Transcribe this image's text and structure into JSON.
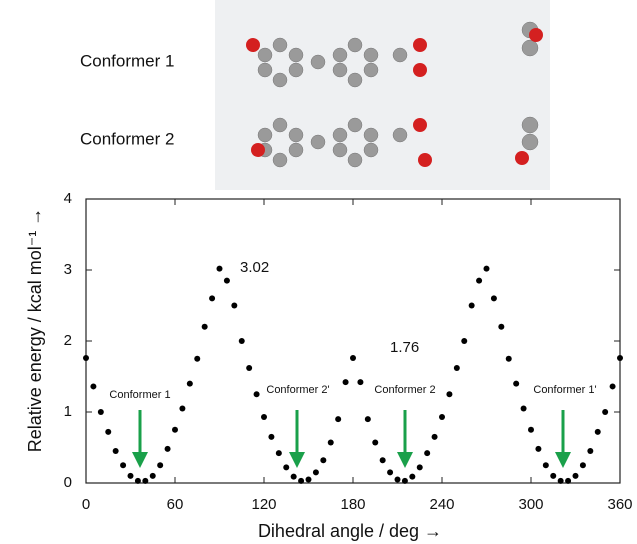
{
  "molecules": [
    "Conformer 1",
    "Conformer 2"
  ],
  "chart_data": {
    "type": "scatter",
    "x_label": "Dihedral angle / deg →",
    "y_label": "Relative energy / kcal mol⁻¹ →",
    "annotations": [
      "3.02",
      "1.76",
      "Conformer 1",
      "Conformer 2'",
      "Conformer 2",
      "Conformer 1'"
    ],
    "x": [
      0,
      5,
      10,
      15,
      20,
      25,
      30,
      35,
      40,
      45,
      50,
      55,
      60,
      65,
      70,
      75,
      80,
      85,
      90,
      95,
      100,
      105,
      110,
      115,
      120,
      125,
      130,
      135,
      140,
      145,
      150,
      155,
      160,
      165,
      170,
      175,
      180,
      185,
      190,
      195,
      200,
      205,
      210,
      215,
      220,
      225,
      230,
      235,
      240,
      245,
      250,
      255,
      260,
      265,
      270,
      275,
      280,
      285,
      290,
      295,
      300,
      305,
      310,
      315,
      320,
      325,
      330,
      335,
      340,
      345,
      350,
      355,
      360
    ],
    "values": [
      1.76,
      1.36,
      1.0,
      0.72,
      0.45,
      0.25,
      0.1,
      0.03,
      0.03,
      0.1,
      0.25,
      0.48,
      0.75,
      1.05,
      1.4,
      1.75,
      2.2,
      2.6,
      3.02,
      2.85,
      2.5,
      2.0,
      1.62,
      1.25,
      0.93,
      0.65,
      0.42,
      0.22,
      0.09,
      0.03,
      0.05,
      0.15,
      0.32,
      0.57,
      0.9,
      1.42,
      1.76,
      1.42,
      0.9,
      0.57,
      0.32,
      0.15,
      0.05,
      0.03,
      0.09,
      0.22,
      0.42,
      0.65,
      0.93,
      1.25,
      1.62,
      2.0,
      2.5,
      2.85,
      3.02,
      2.6,
      2.2,
      1.75,
      1.4,
      1.05,
      0.75,
      0.48,
      0.25,
      0.1,
      0.03,
      0.03,
      0.1,
      0.25,
      0.45,
      0.72,
      1.0,
      1.36,
      1.76
    ],
    "color": "#000000",
    "xlim": [
      0,
      360
    ],
    "xticks": [
      0,
      60,
      120,
      180,
      240,
      300,
      360
    ],
    "ylim": [
      0,
      4
    ],
    "yticks": [
      0,
      1,
      2,
      3,
      4
    ]
  }
}
